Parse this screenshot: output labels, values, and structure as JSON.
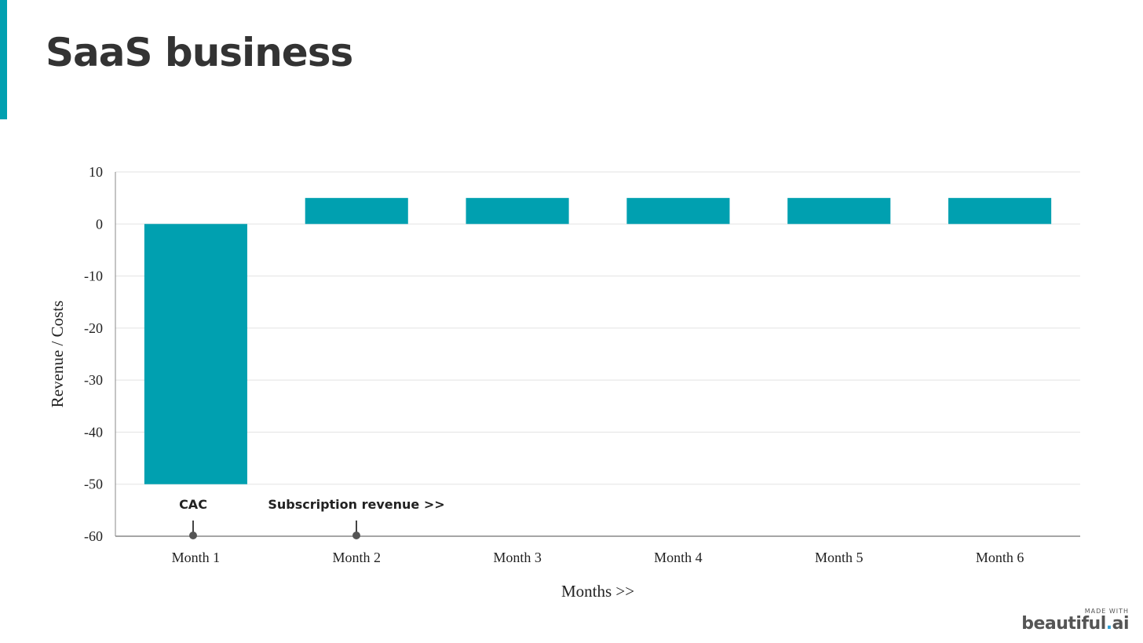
{
  "page": {
    "title": "SaaS business"
  },
  "colors": {
    "accent": "#00a0b0",
    "bar": "#00a0b0",
    "grid": "#e3e3e3",
    "axis": "#888888",
    "text": "#222222"
  },
  "chart_data": {
    "type": "bar",
    "categories": [
      "Month 1",
      "Month 2",
      "Month 3",
      "Month 4",
      "Month 5",
      "Month 6"
    ],
    "values": [
      -50,
      5,
      5,
      5,
      5,
      5
    ],
    "xlabel": "Months >>",
    "ylabel": "Revenue / Costs",
    "ylim": [
      -60,
      10
    ],
    "yticks": [
      10,
      0,
      -10,
      -20,
      -30,
      -40,
      -50,
      -60
    ],
    "grid": true,
    "annotations": [
      {
        "text": "CAC",
        "category": "Month 1"
      },
      {
        "text": "Subscription revenue >>",
        "category": "Month 2"
      }
    ]
  },
  "watermark": {
    "made_with": "MADE WITH",
    "brand_main": "beautiful",
    "brand_dot": ".",
    "brand_ai": "ai"
  }
}
